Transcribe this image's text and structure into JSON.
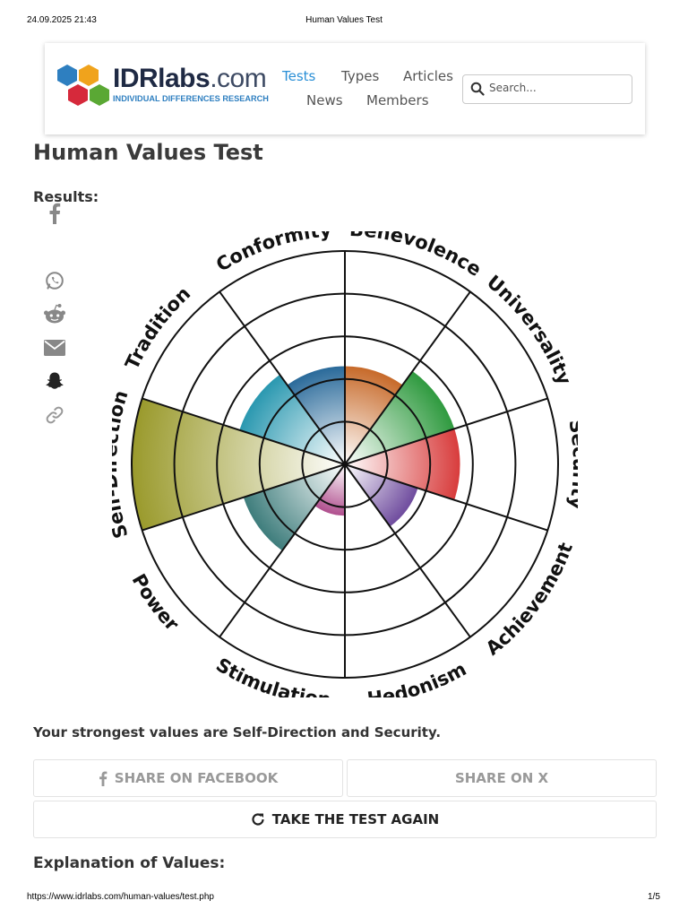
{
  "print_header": {
    "datetime": "24.09.2025 21:43",
    "title": "Human Values Test"
  },
  "print_footer": {
    "url": "https://www.idrlabs.com/human-values/test.php",
    "page": "1/5"
  },
  "logo": {
    "name_bold": "IDRlabs",
    "name_rest": ".com",
    "tagline": "INDIVIDUAL DIFFERENCES RESEARCH"
  },
  "nav": {
    "tests": "Tests",
    "types": "Types",
    "articles": "Articles",
    "news": "News",
    "members": "Members"
  },
  "search": {
    "placeholder": "Search..."
  },
  "page_title": "Human Values Test",
  "results_label": "Results:",
  "colors": {
    "accent": "#2a8fd6",
    "logo_blue": "#2e7fc0"
  },
  "share_rail": {
    "icons": [
      "facebook-icon",
      "whatsapp-icon",
      "reddit-icon",
      "email-icon",
      "snapchat-icon",
      "link-icon"
    ]
  },
  "chart_data": {
    "type": "polar-area",
    "categories": [
      "Benevolence",
      "Universality",
      "Security",
      "Achievement",
      "Hedonism",
      "Stimulation",
      "Power",
      "Self-Direction",
      "Tradition",
      "Conformity"
    ],
    "values": [
      2.3,
      2.7,
      2.7,
      1.8,
      1.2,
      1.2,
      2.5,
      5,
      2.6,
      2.3
    ],
    "scale_max": 5,
    "colors": [
      "#c76a2a",
      "#2f9a3f",
      "#d83c3c",
      "#6f4c9e",
      "#ffffff",
      "#b04f8e",
      "#3e7d7c",
      "#9a9a2c",
      "#2a98b0",
      "#2a6a9a"
    ]
  },
  "strongest_text": "Your strongest values are Self-Direction and Security.",
  "buttons": {
    "share_fb": "SHARE ON FACEBOOK",
    "share_x": "SHARE ON X",
    "retake": "TAKE THE TEST AGAIN"
  },
  "explanation_heading": "Explanation of Values:"
}
